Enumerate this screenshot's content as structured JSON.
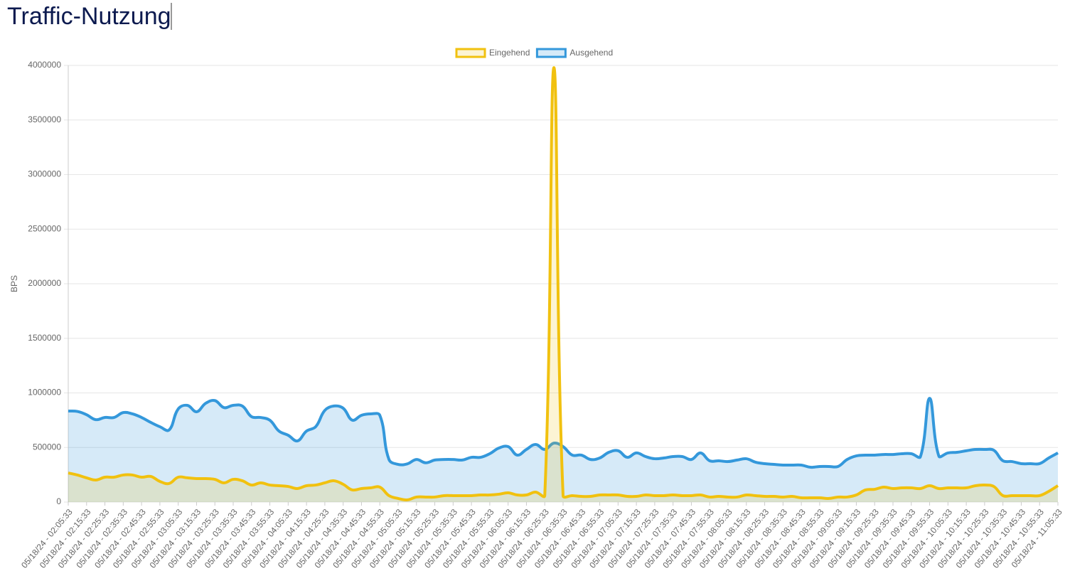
{
  "chart_data": {
    "type": "line",
    "title": "Traffic-Nutzung",
    "y_label": "BPS",
    "legend": "top",
    "categories": [
      "05/18/24 - 02:05:33",
      null,
      "05/18/24 - 02:15:33",
      null,
      "05/18/24 - 02:25:33",
      null,
      "05/18/24 - 02:35:33",
      null,
      "05/18/24 - 02:45:33",
      null,
      "05/18/24 - 02:55:33",
      null,
      "05/18/24 - 03:05:33",
      null,
      "05/18/24 - 03:15:33",
      null,
      "05/18/24 - 03:25:33",
      null,
      "05/18/24 - 03:35:33",
      null,
      "05/18/24 - 03:45:33",
      null,
      "05/18/24 - 03:55:33",
      null,
      "05/18/24 - 04:05:33",
      null,
      "05/18/24 - 04:15:33",
      null,
      "05/18/24 - 04:25:33",
      null,
      "05/18/24 - 04:35:33",
      null,
      "05/18/24 - 04:45:33",
      null,
      "05/18/24 - 04:55:33",
      null,
      "05/18/24 - 05:05:33",
      null,
      "05/18/24 - 05:15:33",
      null,
      "05/18/24 - 05:25:33",
      null,
      "05/18/24 - 05:35:33",
      null,
      "05/18/24 - 05:45:33",
      null,
      "05/18/24 - 05:55:33",
      null,
      "05/18/24 - 06:05:33",
      null,
      "05/18/24 - 06:15:33",
      null,
      "05/18/24 - 06:25:33",
      null,
      "05/18/24 - 06:35:33",
      null,
      "05/18/24 - 06:45:33",
      null,
      "05/18/24 - 06:55:33",
      null,
      "05/18/24 - 07:05:33",
      null,
      "05/18/24 - 07:15:33",
      null,
      "05/18/24 - 07:25:33",
      null,
      "05/18/24 - 07:35:33",
      null,
      "05/18/24 - 07:45:33",
      null,
      "05/18/24 - 07:55:33",
      null,
      "05/18/24 - 08:05:33",
      null,
      "05/18/24 - 08:15:33",
      null,
      "05/18/24 - 08:25:33",
      null,
      "05/18/24 - 08:35:33",
      null,
      "05/18/24 - 08:45:33",
      null,
      "05/18/24 - 08:55:33",
      null,
      "05/18/24 - 09:05:33",
      null,
      "05/18/24 - 09:15:33",
      null,
      "05/18/24 - 09:25:33",
      null,
      "05/18/24 - 09:35:33",
      null,
      "05/18/24 - 09:45:33",
      null,
      "05/18/24 - 09:55:33",
      null,
      "05/18/24 - 10:05:33",
      null,
      "05/18/24 - 10:15:33",
      null,
      "05/18/24 - 10:25:33",
      null,
      "05/18/24 - 10:35:33",
      null,
      "05/18/24 - 10:45:33",
      null,
      "05/18/24 - 10:55:33",
      null,
      "05/18/24 - 11:05:33"
    ],
    "series": [
      {
        "name": "Eingehend",
        "color": "#f1c10f",
        "fill": "rgba(241,193,15,0.18)",
        "values": [
          267000,
          248000,
          222000,
          202000,
          228000,
          228000,
          248000,
          248000,
          228000,
          235000,
          189000,
          170000,
          228000,
          222000,
          215000,
          215000,
          208000,
          176000,
          208000,
          195000,
          156000,
          176000,
          156000,
          150000,
          143000,
          124000,
          150000,
          156000,
          176000,
          195000,
          163000,
          111000,
          124000,
          130000,
          137000,
          59000,
          33000,
          20000,
          46000,
          46000,
          46000,
          59000,
          59000,
          59000,
          59000,
          65000,
          65000,
          72000,
          85000,
          65000,
          65000,
          91000,
          59000,
          3980000,
          59000,
          59000,
          52000,
          52000,
          65000,
          65000,
          65000,
          52000,
          52000,
          65000,
          59000,
          59000,
          65000,
          59000,
          59000,
          65000,
          46000,
          52000,
          46000,
          46000,
          65000,
          59000,
          52000,
          52000,
          46000,
          52000,
          39000,
          39000,
          39000,
          33000,
          46000,
          46000,
          65000,
          111000,
          117000,
          137000,
          124000,
          130000,
          130000,
          124000,
          150000,
          124000,
          130000,
          130000,
          130000,
          150000,
          156000,
          143000,
          59000,
          59000,
          59000,
          59000,
          59000,
          98000,
          150000
        ]
      },
      {
        "name": "Ausgehend",
        "color": "#3498db",
        "fill": "rgba(52,152,219,0.2)",
        "values": [
          834000,
          830000,
          800000,
          755000,
          775000,
          775000,
          820000,
          808000,
          775000,
          730000,
          690000,
          660000,
          853000,
          886000,
          827000,
          905000,
          930000,
          865000,
          886000,
          880000,
          782000,
          775000,
          750000,
          650000,
          612000,
          560000,
          650000,
          690000,
          840000,
          880000,
          860000,
          750000,
          795000,
          808000,
          795000,
          390000,
          345000,
          350000,
          390000,
          360000,
          385000,
          390000,
          390000,
          385000,
          410000,
          410000,
          443000,
          495000,
          508000,
          430000,
          482000,
          528000,
          482000,
          540000,
          508000,
          430000,
          430000,
          390000,
          404000,
          456000,
          470000,
          410000,
          450000,
          417000,
          397000,
          404000,
          417000,
          417000,
          390000,
          450000,
          378000,
          378000,
          371000,
          385000,
          397000,
          365000,
          352000,
          345000,
          339000,
          339000,
          339000,
          319000,
          326000,
          326000,
          326000,
          390000,
          423000,
          430000,
          430000,
          436000,
          436000,
          443000,
          443000,
          417000,
          950000,
          423000,
          450000,
          456000,
          470000,
          482000,
          482000,
          475000,
          378000,
          371000,
          352000,
          352000,
          352000,
          404000,
          450000
        ]
      }
    ],
    "ylim": [
      0,
      4000000
    ],
    "yticks": [
      0,
      500000,
      1000000,
      1500000,
      2000000,
      2500000,
      3000000,
      3500000,
      4000000
    ],
    "grid": true
  }
}
